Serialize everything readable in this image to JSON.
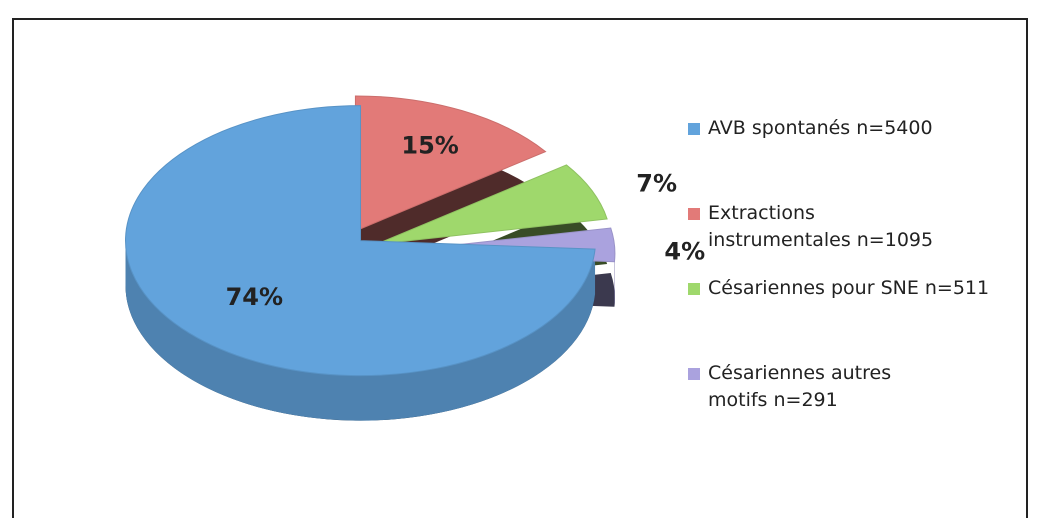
{
  "chart_data": {
    "type": "pie",
    "categories": [
      "AVB spontanés n=5400",
      "Extractions instrumentales n=1095",
      "Césariennes pour SNE n=511",
      "Césariennes autres motifs n=291"
    ],
    "values": [
      74,
      15,
      7,
      4
    ],
    "value_labels": [
      "74%",
      "15%",
      "7%",
      "4%"
    ],
    "colors": [
      "#62a3dc",
      "#e27a78",
      "#9fd86c",
      "#aaa2de"
    ],
    "legend": "right"
  }
}
